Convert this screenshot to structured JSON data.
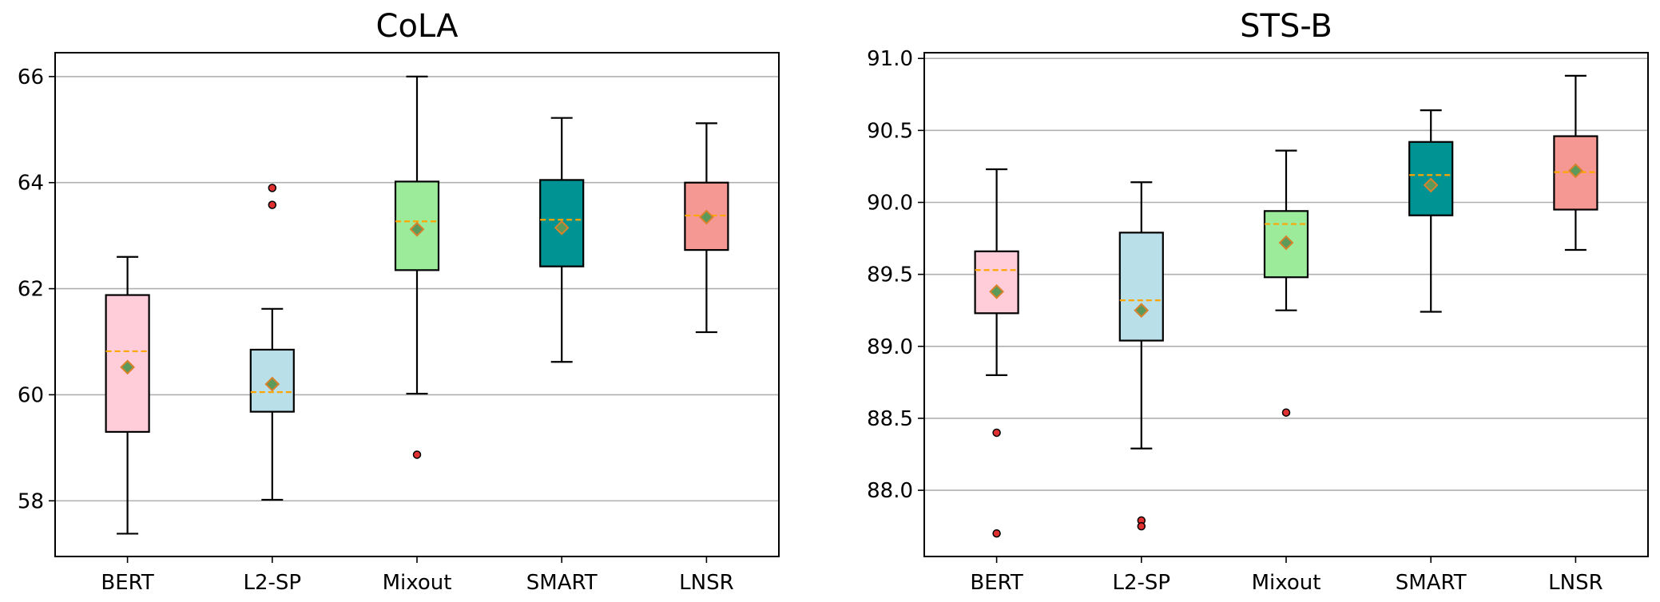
{
  "chart_data": [
    {
      "type": "box",
      "title": "CoLA",
      "categories": [
        "BERT",
        "L2-SP",
        "Mixout",
        "SMART",
        "LNSR"
      ],
      "yticks": [
        58,
        60,
        62,
        64,
        66
      ],
      "ylim": [
        56.95,
        66.45
      ],
      "grid": "horizontal",
      "boxes": [
        {
          "whislo": 57.38,
          "q1": 59.3,
          "med": 60.82,
          "q3": 61.88,
          "whishi": 62.6,
          "mean": 60.52,
          "fliers": [],
          "color": "#ffccd9"
        },
        {
          "whislo": 58.02,
          "q1": 59.68,
          "med": 60.05,
          "q3": 60.85,
          "whishi": 61.62,
          "mean": 60.2,
          "fliers": [
            63.9,
            63.58
          ],
          "color": "#b9dfe9"
        },
        {
          "whislo": 60.02,
          "q1": 62.35,
          "med": 63.27,
          "q3": 64.02,
          "whishi": 66.0,
          "mean": 63.12,
          "fliers": [
            58.87
          ],
          "color": "#9ceb9b"
        },
        {
          "whislo": 60.62,
          "q1": 62.42,
          "med": 63.3,
          "q3": 64.05,
          "whishi": 65.22,
          "mean": 63.15,
          "fliers": [],
          "color": "#009393"
        },
        {
          "whislo": 61.18,
          "q1": 62.73,
          "med": 63.38,
          "q3": 64.0,
          "whishi": 65.12,
          "mean": 63.35,
          "fliers": [],
          "color": "#f59793"
        }
      ]
    },
    {
      "type": "box",
      "title": "STS-B",
      "categories": [
        "BERT",
        "L2-SP",
        "Mixout",
        "SMART",
        "LNSR"
      ],
      "yticks": [
        "88.0",
        "88.5",
        "89.0",
        "89.5",
        "90.0",
        "90.5",
        "91.0"
      ],
      "ylim": [
        87.54,
        91.04
      ],
      "grid": "horizontal",
      "boxes": [
        {
          "whislo": 88.8,
          "q1": 89.23,
          "med": 89.53,
          "q3": 89.66,
          "whishi": 90.23,
          "mean": 89.38,
          "fliers": [
            88.4,
            87.7
          ],
          "color": "#ffccd9"
        },
        {
          "whislo": 88.29,
          "q1": 89.04,
          "med": 89.32,
          "q3": 89.79,
          "whishi": 90.14,
          "mean": 89.25,
          "fliers": [
            87.79,
            87.75
          ],
          "color": "#b9dfe9"
        },
        {
          "whislo": 89.25,
          "q1": 89.48,
          "med": 89.85,
          "q3": 89.94,
          "whishi": 90.36,
          "mean": 89.72,
          "fliers": [
            88.54
          ],
          "color": "#9ceb9b"
        },
        {
          "whislo": 89.24,
          "q1": 89.91,
          "med": 90.19,
          "q3": 90.42,
          "whishi": 90.64,
          "mean": 90.12,
          "fliers": [],
          "color": "#009393"
        },
        {
          "whislo": 89.67,
          "q1": 89.95,
          "med": 90.21,
          "q3": 90.46,
          "whishi": 90.88,
          "mean": 90.22,
          "fliers": [],
          "color": "#f59793"
        }
      ]
    }
  ]
}
